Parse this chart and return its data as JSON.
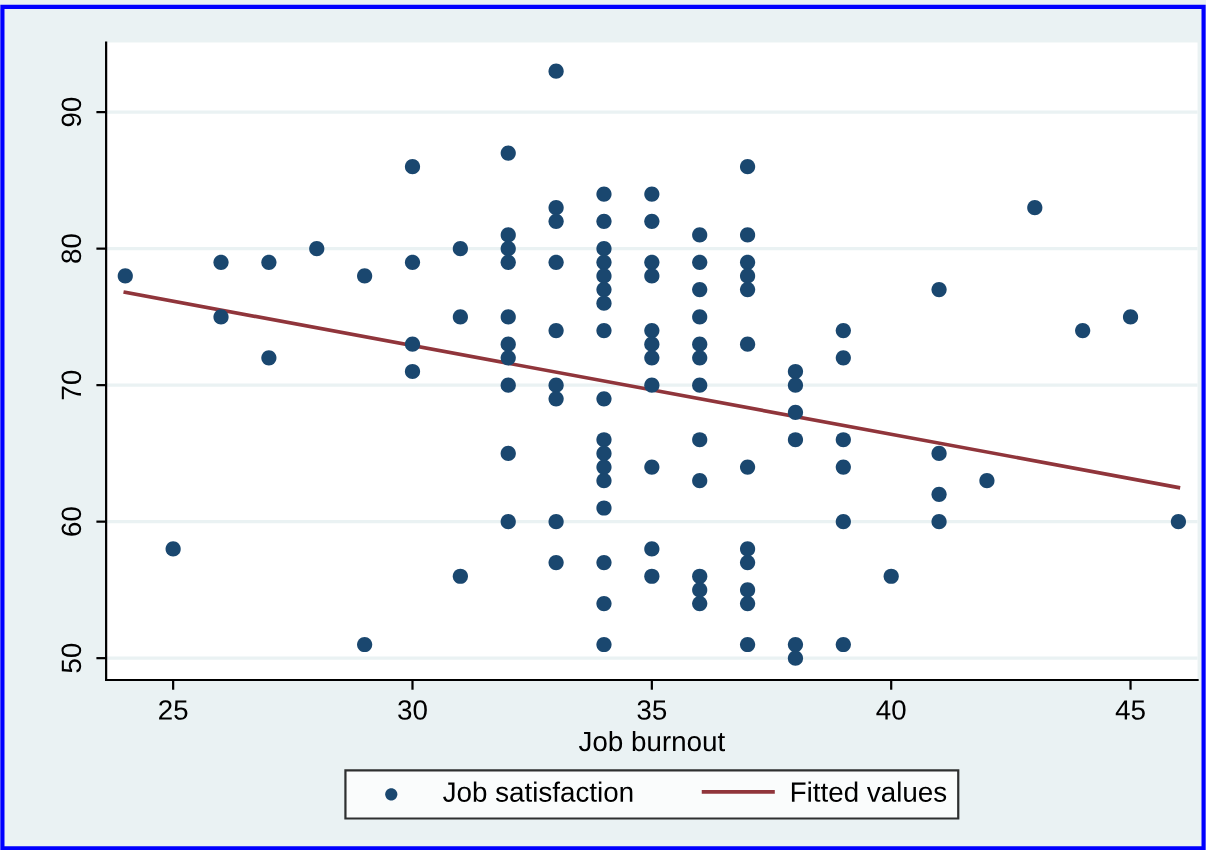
{
  "chart_data": {
    "type": "scatter",
    "xlabel": "Job burnout",
    "xlim": [
      23.6,
      46.4
    ],
    "xticks": [
      25,
      30,
      35,
      40,
      45
    ],
    "ylim": [
      48.4,
      95.1
    ],
    "yticks": [
      50,
      60,
      70,
      80,
      90
    ],
    "grid": "y",
    "legend": "bottom",
    "marker": "circle",
    "series": [
      {
        "name": "Job satisfaction",
        "color": "#1a476f",
        "x": [
          24,
          25,
          26,
          26,
          27,
          27,
          28,
          29,
          29,
          30,
          30,
          30,
          30,
          31,
          31,
          31,
          32,
          32,
          32,
          32,
          32,
          32,
          32,
          32,
          32,
          32,
          33,
          33,
          33,
          33,
          33,
          33,
          33,
          33,
          33,
          34,
          34,
          34,
          34,
          34,
          34,
          34,
          34,
          34,
          34,
          34,
          34,
          34,
          34,
          34,
          34,
          34,
          35,
          35,
          35,
          35,
          35,
          35,
          35,
          35,
          35,
          35,
          35,
          36,
          36,
          36,
          36,
          36,
          36,
          36,
          36,
          36,
          36,
          36,
          36,
          37,
          37,
          37,
          37,
          37,
          37,
          37,
          37,
          37,
          37,
          37,
          37,
          38,
          38,
          38,
          38,
          38,
          38,
          39,
          39,
          39,
          39,
          39,
          39,
          40,
          41,
          41,
          41,
          41,
          42,
          43,
          44,
          45,
          46
        ],
        "values": [
          78,
          58,
          79,
          75,
          79,
          72,
          80,
          78,
          51,
          86,
          79,
          73,
          71,
          80,
          75,
          56,
          87,
          81,
          80,
          79,
          75,
          73,
          72,
          70,
          65,
          60,
          93,
          83,
          82,
          79,
          74,
          70,
          69,
          60,
          57,
          84,
          82,
          80,
          79,
          78,
          77,
          76,
          74,
          69,
          66,
          65,
          64,
          63,
          61,
          57,
          54,
          51,
          84,
          82,
          79,
          78,
          74,
          73,
          72,
          70,
          64,
          58,
          56,
          81,
          79,
          77,
          75,
          73,
          72,
          70,
          66,
          63,
          56,
          55,
          54,
          86,
          81,
          79,
          78,
          77,
          73,
          64,
          58,
          57,
          55,
          54,
          51,
          71,
          70,
          68,
          66,
          51,
          50,
          74,
          72,
          66,
          64,
          60,
          51,
          56,
          77,
          65,
          62,
          60,
          63,
          83,
          74,
          75,
          60
        ]
      },
      {
        "name": "Fitted values",
        "type": "line",
        "color": "#90353b",
        "x": [
          24,
          46
        ],
        "values": [
          76.8,
          62.5
        ],
        "marker": "none",
        "line_style": "solid"
      }
    ]
  }
}
